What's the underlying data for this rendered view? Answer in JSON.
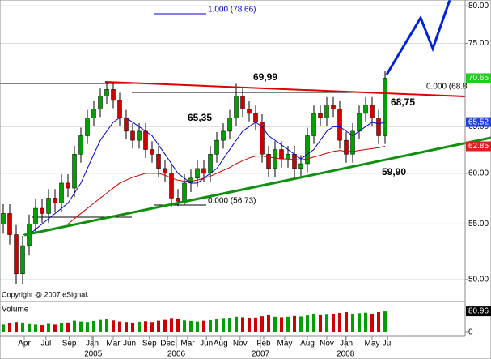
{
  "chart_data": {
    "type": "candlestick",
    "log_scale": true,
    "grid": true,
    "ylim": [
      49.3,
      80.8
    ],
    "yticks": [
      {
        "value": 50,
        "label": "50.00"
      },
      {
        "value": 55,
        "label": "55.00"
      },
      {
        "value": 60,
        "label": "60.00"
      },
      {
        "value": 65,
        "label": "65.00"
      },
      {
        "value": 75,
        "label": "75.00"
      },
      {
        "value": 80,
        "label": "80.00"
      }
    ],
    "up_color": "#00a000",
    "down_color": "#d00000",
    "open": [
      55,
      56,
      54,
      50.5,
      53,
      55,
      56.5,
      56,
      57.5,
      57,
      59,
      58.5,
      62,
      64,
      66,
      67,
      68.5,
      69.3,
      68,
      66,
      64.5,
      63.5,
      64.5,
      62.5,
      62,
      60.5,
      60,
      57.5,
      57.2,
      59,
      59.5,
      60.5,
      60,
      62,
      63.5,
      64.5,
      66,
      68.5,
      67,
      66.5,
      65.5,
      62,
      60.5,
      62.5,
      61.5,
      62,
      60.5,
      61,
      64,
      66.5,
      66,
      67.5,
      67,
      63.5,
      62,
      64.5,
      66.5,
      67.5,
      66,
      64
    ],
    "high": [
      56.9,
      56.9,
      54.9,
      53.9,
      55.9,
      57.4,
      57.4,
      58.4,
      58.4,
      59.9,
      59.9,
      62.9,
      64.9,
      66.9,
      67.9,
      69.4,
      70.2,
      70.2,
      68.9,
      66.9,
      65.4,
      65.4,
      65.4,
      63.4,
      62.9,
      61.4,
      60.9,
      58.4,
      59.9,
      60.4,
      61.4,
      61.4,
      62.9,
      64.4,
      65.4,
      66.9,
      69.99,
      69.4,
      67.9,
      67.4,
      66.4,
      62.9,
      63.4,
      63.4,
      62.9,
      62.9,
      61.9,
      64.9,
      67.4,
      67.4,
      68.4,
      68.4,
      67.9,
      64.4,
      65.4,
      67.4,
      68.4,
      68.4,
      66.9,
      71.5
    ],
    "low": [
      54.1,
      53.1,
      49.6,
      49.6,
      52.1,
      54.1,
      55.1,
      55.1,
      56.1,
      56.1,
      57.6,
      57.6,
      61.1,
      63.1,
      65.1,
      66.1,
      67.6,
      67.1,
      65.1,
      63.6,
      62.6,
      62.6,
      61.6,
      61.1,
      59.6,
      59.1,
      56.6,
      56.73,
      56.8,
      58.1,
      58.6,
      59.1,
      59.1,
      61.1,
      62.6,
      63.6,
      65.1,
      66.1,
      65.6,
      64.6,
      61.1,
      59.6,
      59.6,
      60.6,
      60.6,
      59.6,
      59.6,
      60.1,
      63.1,
      65.1,
      65.1,
      66.1,
      62.6,
      61.1,
      61.1,
      63.6,
      65.6,
      65.1,
      63.1,
      63.1
    ],
    "close": [
      56,
      54,
      50.5,
      53,
      55,
      56.5,
      56,
      57.5,
      57,
      59,
      58.5,
      62,
      64,
      66,
      67,
      68.5,
      69.3,
      68,
      66,
      64.5,
      63.5,
      64.5,
      62.5,
      62,
      60.5,
      60,
      57.5,
      57.2,
      59,
      59.5,
      60.5,
      60,
      62,
      63.5,
      64.5,
      66,
      68.5,
      67,
      66.5,
      65.5,
      62,
      60.5,
      62.5,
      61.5,
      62,
      60.5,
      61,
      64,
      66.5,
      66,
      67.5,
      67,
      63.5,
      62,
      64.5,
      66.5,
      67.5,
      66,
      64,
      70.65
    ],
    "moving_averages": [
      {
        "color": "#0000cc",
        "values": [
          null,
          null,
          null,
          54,
          54,
          54.5,
          55,
          55.5,
          56,
          56.5,
          57,
          58,
          59,
          60.5,
          62,
          63.5,
          64.5,
          65.5,
          66,
          66,
          65.5,
          65,
          64.5,
          64,
          63,
          62,
          61,
          60,
          59.5,
          59,
          59,
          59.5,
          60,
          60.5,
          61.5,
          62.5,
          63.5,
          64.5,
          65,
          65.5,
          65,
          64,
          63.5,
          63,
          62.5,
          62,
          61.5,
          62,
          62.5,
          63.5,
          64.5,
          65,
          65,
          64.5,
          64,
          64.5,
          65,
          65.5,
          65.3,
          65.52
        ]
      },
      {
        "color": "#cc0000",
        "values": [
          null,
          null,
          null,
          null,
          null,
          null,
          null,
          null,
          null,
          null,
          55,
          55.5,
          56,
          56.5,
          57,
          57.5,
          58,
          58.5,
          59,
          59.3,
          59.6,
          59.8,
          60,
          60,
          60,
          59.8,
          59.5,
          59.3,
          59.2,
          59.2,
          59.3,
          59.5,
          59.7,
          60,
          60.3,
          60.6,
          61,
          61.3,
          61.6,
          61.8,
          61.8,
          61.7,
          61.6,
          61.5,
          61.5,
          61.4,
          61.4,
          61.5,
          61.7,
          61.9,
          62.1,
          62.3,
          62.4,
          62.3,
          62.3,
          62.4,
          62.5,
          62.6,
          62.7,
          62.85
        ]
      }
    ],
    "last_values": [
      {
        "value": 70.65,
        "color": "#22cc22"
      },
      {
        "value": 65.52,
        "color": "#2244dd"
      },
      {
        "value": 62.85,
        "color": "#dd2222"
      }
    ],
    "volume": {
      "label": "Volume",
      "ylim": [
        0,
        100
      ],
      "yticks": [
        0
      ],
      "last": 80.96,
      "values": [
        30,
        35,
        40,
        38,
        32,
        30,
        28,
        33,
        30,
        35,
        38,
        45,
        42,
        40,
        44,
        48,
        50,
        46,
        42,
        40,
        38,
        41,
        43,
        40,
        45,
        48,
        52,
        50,
        46,
        44,
        42,
        45,
        47,
        50,
        52,
        55,
        60,
        58,
        55,
        57,
        62,
        66,
        60,
        58,
        60,
        63,
        61,
        65,
        70,
        66,
        68,
        72,
        75,
        78,
        70,
        74,
        76,
        72,
        78,
        80.96
      ]
    },
    "xticks": [
      {
        "value": 3.25,
        "label": "Apr"
      },
      {
        "value": 6.6,
        "label": "Jul"
      },
      {
        "value": 10.2,
        "label": "Sep"
      },
      {
        "value": 13.75,
        "label": "Jan"
      },
      {
        "value": 17,
        "label": "Mar"
      },
      {
        "value": 19.5,
        "label": "Jun"
      },
      {
        "value": 22.6,
        "label": "Sep"
      },
      {
        "value": 25.4,
        "label": "Dec"
      },
      {
        "value": 28.5,
        "label": "Mar"
      },
      {
        "value": 31.4,
        "label": "Jun"
      },
      {
        "value": 33.6,
        "label": "Aug"
      },
      {
        "value": 36.6,
        "label": "Nov"
      },
      {
        "value": 40.25,
        "label": "Feb"
      },
      {
        "value": 43.5,
        "label": "May"
      },
      {
        "value": 47,
        "label": "Aug"
      },
      {
        "value": 50,
        "label": "Nov"
      },
      {
        "value": 53,
        "label": "Jan"
      },
      {
        "value": 57,
        "label": "May"
      },
      {
        "value": 59.4,
        "label": "Jul"
      }
    ],
    "year_ticks": [
      {
        "value": 13.9,
        "label": "2005"
      },
      {
        "value": 26.75,
        "label": "2006"
      },
      {
        "value": 39.75,
        "label": "2007"
      },
      {
        "value": 52.9,
        "label": "2008"
      }
    ],
    "annotations": [
      "69,99",
      "65,35",
      "68,75",
      "59,90",
      "0.000 (68.8",
      "0.000 (56.73)",
      "1.000 (78.66)"
    ],
    "copyright": "Copyright @ 2007 eSignal."
  }
}
